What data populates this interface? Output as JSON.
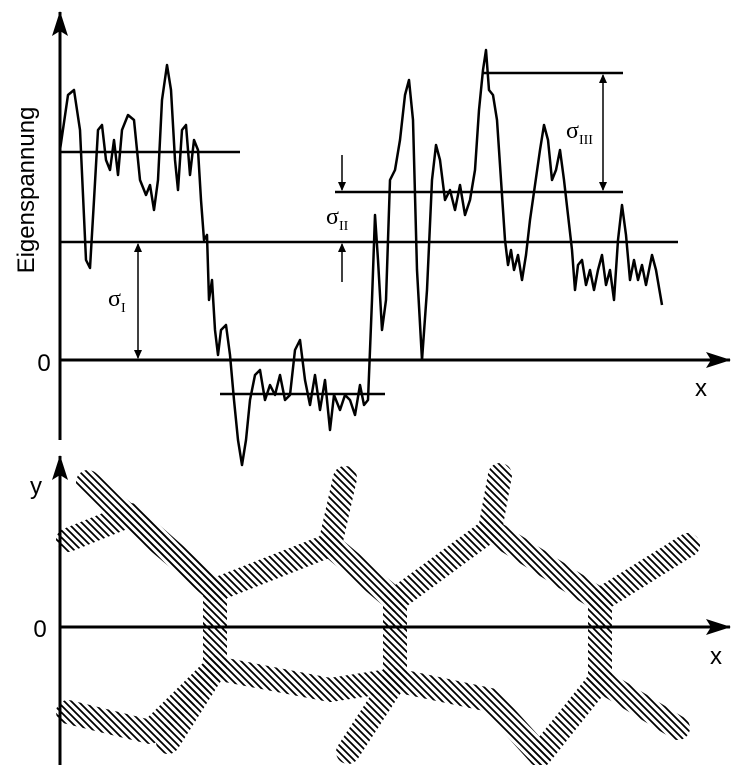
{
  "top_plot": {
    "y_axis_label": "Eigenspannung",
    "origin_label": "0",
    "x_axis_label": "x",
    "sigma_I": {
      "symbol": "σ",
      "subscript": "I"
    },
    "sigma_II": {
      "symbol": "σ",
      "subscript": "II"
    },
    "sigma_III": {
      "symbol": "σ",
      "subscript": "III"
    }
  },
  "bottom_plot": {
    "y_axis_label": "y",
    "origin_label": "0",
    "x_axis_label": "x"
  }
}
